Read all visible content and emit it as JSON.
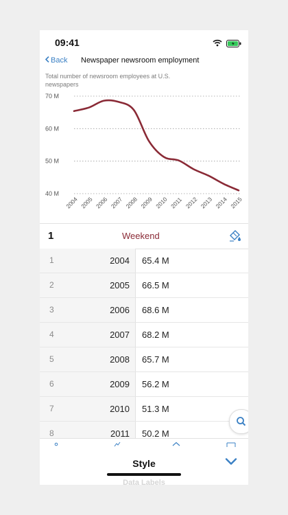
{
  "status_bar": {
    "time": "09:41"
  },
  "nav": {
    "back_label": "Back",
    "title": "Newspaper newsroom employment"
  },
  "chart_subtitle": "Total number of newsroom employees at U.S. newspapers",
  "accent_color": "#8a2a36",
  "link_color": "#3a80c4",
  "chart_data": {
    "type": "line",
    "title": "Newspaper newsroom employment",
    "subtitle": "Total number of newsroom employees at U.S. newspapers",
    "categories": [
      "2004",
      "2005",
      "2006",
      "2007",
      "2008",
      "2009",
      "2010",
      "2011",
      "2012",
      "2013",
      "2014",
      "2015"
    ],
    "series": [
      {
        "name": "Weekend",
        "values": [
          65.4,
          66.5,
          68.6,
          68.2,
          65.7,
          56.2,
          51.3,
          50.2,
          47.5,
          45.5,
          43.0,
          41.0
        ]
      }
    ],
    "y_ticks": [
      "40 M",
      "50 M",
      "60 M",
      "70 M"
    ],
    "ylim": [
      40,
      70
    ],
    "grid": true,
    "line_color": "#8a2a36"
  },
  "data_header": {
    "row_label": "1",
    "column_name": "Weekend"
  },
  "table": {
    "rows": [
      {
        "num": "1",
        "year": "2004",
        "value": "65.4 M"
      },
      {
        "num": "2",
        "year": "2005",
        "value": "66.5 M"
      },
      {
        "num": "3",
        "year": "2006",
        "value": "68.6 M"
      },
      {
        "num": "4",
        "year": "2007",
        "value": "68.2 M"
      },
      {
        "num": "5",
        "year": "2008",
        "value": "65.7 M"
      },
      {
        "num": "6",
        "year": "2009",
        "value": "56.2 M"
      },
      {
        "num": "7",
        "year": "2010",
        "value": "51.3 M"
      },
      {
        "num": "8",
        "year": "2011",
        "value": "50.2 M"
      }
    ]
  },
  "bottom_panel": {
    "title": "Style",
    "next_section": "Data Labels"
  }
}
